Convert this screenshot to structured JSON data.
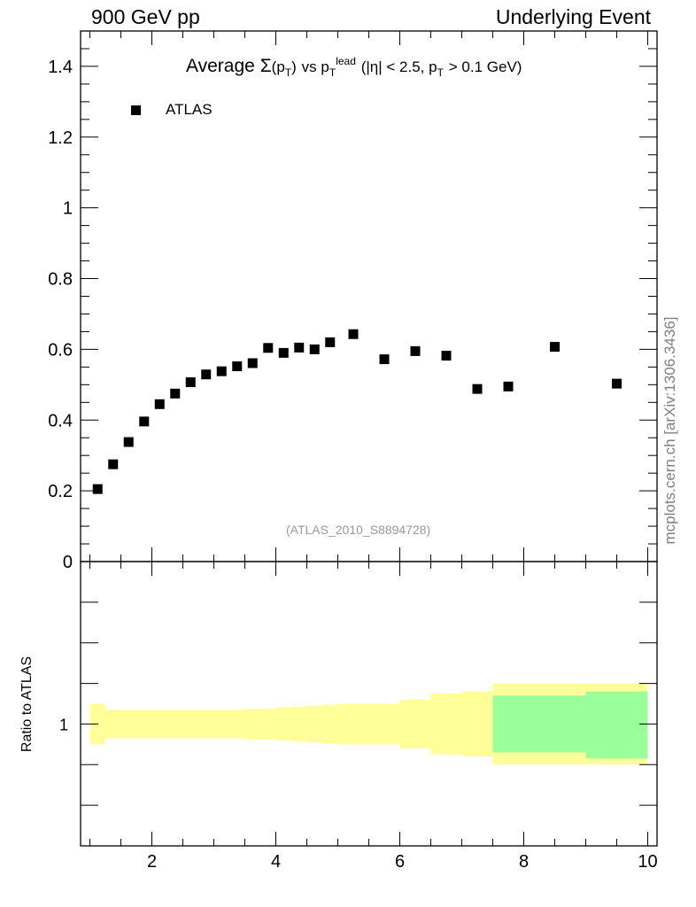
{
  "header": {
    "left": "900 GeV pp",
    "right": "Underlying Event"
  },
  "side_note": "mcplots.cern.ch [arXiv:1306.3436]",
  "title": {
    "prefix": "Average",
    "sigma": "Σ",
    "pt_open": "(p",
    "pt_sub": "T",
    "pt_close": ")",
    "vs": "vs p",
    "lead_sub": "T",
    "lead_sup": "lead",
    "cuts_a": "(|η| < 2.5, p",
    "cuts_sub": "T",
    "cuts_b": "> 0.1 GeV)"
  },
  "legend": {
    "label": "ATLAS"
  },
  "reference_label": "(ATLAS_2010_S8894728)",
  "ratio_ylabel": "Ratio to ATLAS",
  "colors": {
    "yellow_band": "#ffff99",
    "green_band": "#99ff99",
    "marker": "#000000"
  },
  "chart_data": [
    {
      "type": "scatter",
      "series": [
        {
          "name": "ATLAS",
          "x": [
            1.125,
            1.375,
            1.625,
            1.875,
            2.125,
            2.375,
            2.625,
            2.875,
            3.125,
            3.375,
            3.625,
            3.875,
            4.125,
            4.375,
            4.625,
            4.875,
            5.25,
            5.75,
            6.25,
            6.75,
            7.25,
            7.75,
            8.5,
            9.5
          ],
          "y": [
            0.205,
            0.275,
            0.338,
            0.396,
            0.445,
            0.475,
            0.507,
            0.529,
            0.538,
            0.552,
            0.561,
            0.604,
            0.59,
            0.605,
            0.6,
            0.62,
            0.643,
            0.572,
            0.595,
            0.582,
            0.488,
            0.495,
            0.607,
            0.503
          ]
        }
      ],
      "xlim": [
        0.85,
        10.15
      ],
      "ylim": [
        0,
        1.5
      ],
      "yticks": [
        0,
        0.2,
        0.4,
        0.6,
        0.8,
        1,
        1.2,
        1.4
      ],
      "ytick_labels": [
        "0",
        "0.2",
        "0.4",
        "0.6",
        "0.8",
        "1",
        "1.2",
        "1.4"
      ]
    },
    {
      "type": "area",
      "bins": [
        1.0,
        1.25,
        1.5,
        1.75,
        2.0,
        2.25,
        2.5,
        2.75,
        3.0,
        3.25,
        3.5,
        3.75,
        4.0,
        4.25,
        4.5,
        4.75,
        5.0,
        5.5,
        6.0,
        6.5,
        7.0,
        7.5,
        8.0,
        9.0,
        10.0
      ],
      "yellow_band": {
        "lo": [
          0.9,
          0.93,
          0.93,
          0.93,
          0.93,
          0.93,
          0.93,
          0.93,
          0.93,
          0.93,
          0.925,
          0.925,
          0.92,
          0.915,
          0.91,
          0.905,
          0.9,
          0.9,
          0.88,
          0.85,
          0.84,
          0.8,
          0.8,
          0.8,
          0.77
        ],
        "hi": [
          1.1,
          1.07,
          1.07,
          1.07,
          1.07,
          1.07,
          1.07,
          1.07,
          1.07,
          1.07,
          1.075,
          1.075,
          1.08,
          1.085,
          1.09,
          1.095,
          1.1,
          1.1,
          1.12,
          1.15,
          1.16,
          1.2,
          1.2,
          1.2,
          1.23
        ]
      },
      "green_band": {
        "bins": [
          7.5,
          8.0,
          9.0,
          10.0
        ],
        "lo": [
          0.86,
          0.86,
          0.83
        ],
        "hi": [
          1.14,
          1.14,
          1.16
        ]
      },
      "xticks": [
        2,
        4,
        6,
        8,
        10
      ],
      "xtick_labels": [
        "2",
        "4",
        "6",
        "8",
        "10"
      ],
      "yticks": [
        1
      ],
      "ytick_labels": [
        "1"
      ],
      "ylim": [
        0.4,
        1.8
      ]
    }
  ]
}
